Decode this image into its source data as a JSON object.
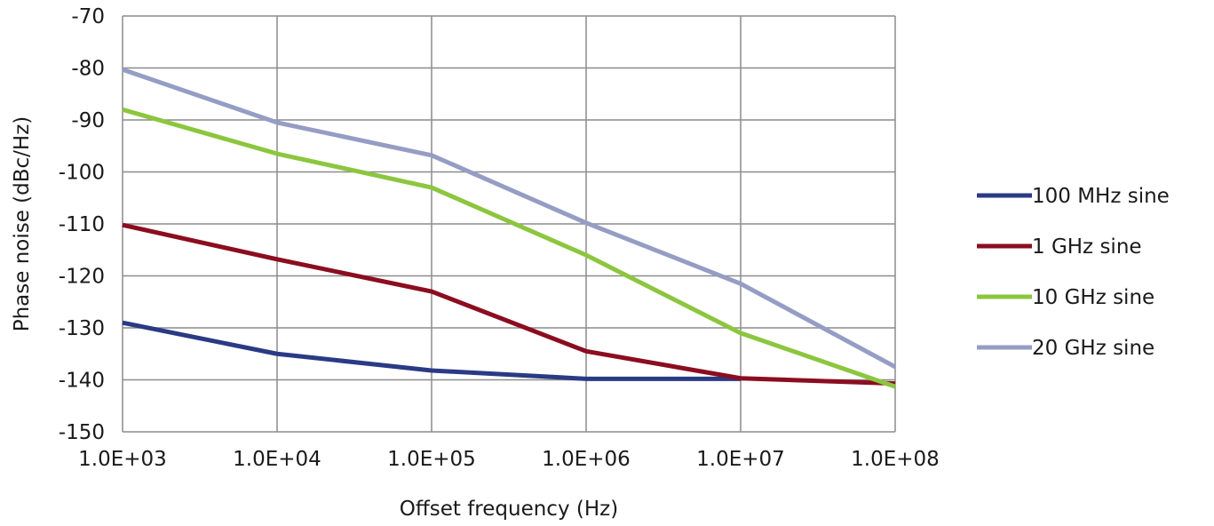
{
  "chart_data": {
    "type": "line",
    "xlabel": "Offset frequency (Hz)",
    "ylabel": "Phase noise (dBc/Hz)",
    "x_scale": "log",
    "x": [
      1000,
      10000,
      100000,
      1000000,
      10000000,
      100000000
    ],
    "x_tick_labels": [
      "1.0E+03",
      "1.0E+04",
      "1.0E+05",
      "1.0E+06",
      "1.0E+07",
      "1.0E+08"
    ],
    "ylim": [
      -150,
      -70
    ],
    "y_ticks": [
      -70,
      -80,
      -90,
      -100,
      -110,
      -120,
      -130,
      -140,
      -150
    ],
    "y_tick_labels": [
      "-70",
      "-80",
      "-90",
      "-100",
      "-110",
      "-120",
      "-130",
      "-140",
      "-150"
    ],
    "grid": true,
    "legend_position": "right",
    "series": [
      {
        "name": "100 MHz sine",
        "color": "#2a3a85",
        "values": [
          -129,
          -135,
          -138.2,
          -139.8,
          -139.8,
          null
        ]
      },
      {
        "name": "1 GHz sine",
        "color": "#8b0d20",
        "values": [
          -110.2,
          -116.8,
          -123,
          -134.5,
          -139.7,
          -140.7
        ]
      },
      {
        "name": "10 GHz sine",
        "color": "#8cc63f",
        "values": [
          -88,
          -96.5,
          -103,
          -116,
          -131,
          -141.3
        ]
      },
      {
        "name": "20 GHz sine",
        "color": "#959dc4",
        "values": [
          -80.3,
          -90.5,
          -96.8,
          -109.8,
          -121.5,
          -137.5
        ]
      }
    ]
  }
}
